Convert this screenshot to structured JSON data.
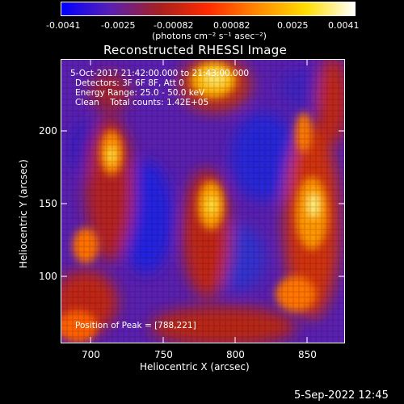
{
  "colorbar": {
    "colors": [
      "#0000ff",
      "#5a1fb4",
      "#a52020",
      "#ff2a00",
      "#ff8800",
      "#ffdd00",
      "#ffffff"
    ],
    "ticks": [
      "-0.0041",
      "-0.0025",
      "-0.00082",
      "0.00082",
      "0.0025",
      "0.0041"
    ],
    "units": "(photons cm⁻² s⁻¹ asec⁻²)"
  },
  "title": "Reconstructed RHESSI Image",
  "annotations": {
    "time": "5-Oct-2017 21:42:00.000 to 21:43:00.000",
    "detectors": "Detectors: 3F 6F 8F, Att 0",
    "energy": "Energy Range: 25.0 - 50.0 keV",
    "clean": "Clean    Total counts: 1.42E+05",
    "peak": "Position of Peak = [788,221]"
  },
  "axes": {
    "xlabel": "Heliocentric X (arcsec)",
    "ylabel": "Heliocentric Y (arcsec)",
    "xticks": [
      "700",
      "750",
      "800",
      "850"
    ],
    "yticks": [
      "100",
      "150",
      "200"
    ]
  },
  "footer": {
    "timestamp": "5-Sep-2022 12:45"
  }
}
